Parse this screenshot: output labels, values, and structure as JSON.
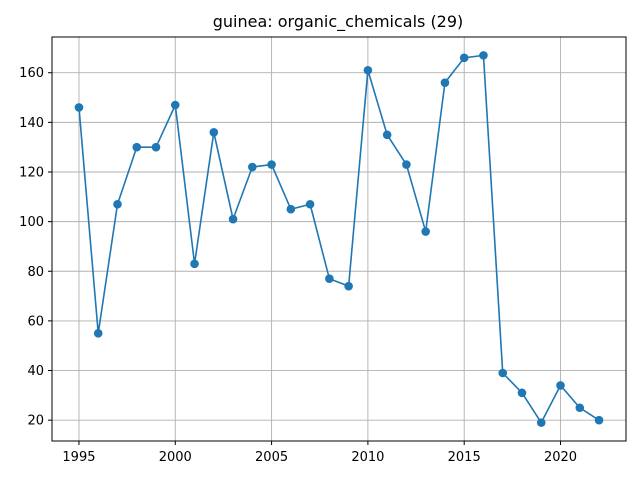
{
  "chart_data": {
    "type": "line",
    "title": "guinea: organic_chemicals (29)",
    "xlabel": "",
    "ylabel": "",
    "xlim": [
      1993.6,
      2023.4
    ],
    "ylim": [
      11.6,
      174.4
    ],
    "grid": true,
    "x_ticks": [
      1995,
      2000,
      2005,
      2010,
      2015,
      2020
    ],
    "y_ticks": [
      20,
      40,
      60,
      80,
      100,
      120,
      140,
      160
    ],
    "color": "#1f77b4",
    "marker": "circle",
    "series": [
      {
        "name": "organic_chemicals",
        "x": [
          1995,
          1996,
          1997,
          1998,
          1999,
          2000,
          2001,
          2002,
          2003,
          2004,
          2005,
          2006,
          2007,
          2008,
          2009,
          2010,
          2011,
          2012,
          2013,
          2014,
          2015,
          2016,
          2017,
          2018,
          2019,
          2020,
          2021,
          2022
        ],
        "values": [
          146,
          55,
          107,
          130,
          130,
          147,
          83,
          136,
          101,
          122,
          123,
          105,
          107,
          77,
          74,
          161,
          135,
          123,
          96,
          156,
          166,
          167,
          39,
          31,
          19,
          34,
          25,
          20
        ]
      }
    ]
  }
}
